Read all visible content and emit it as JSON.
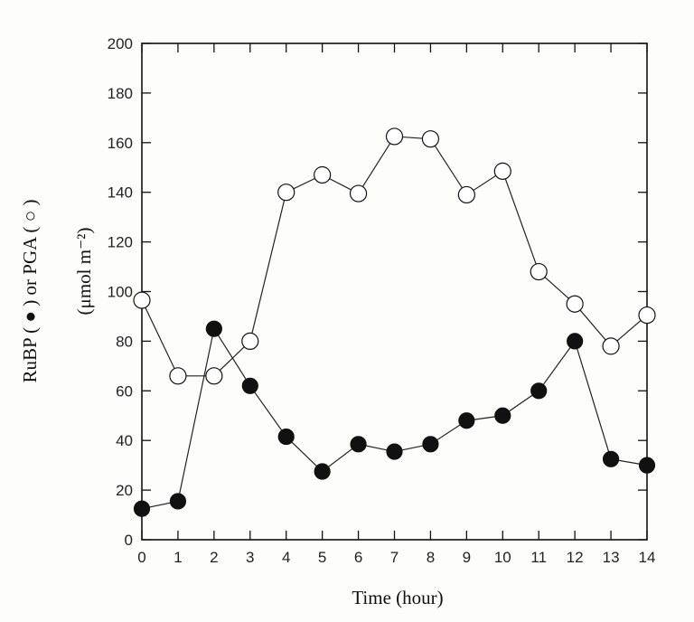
{
  "chart_data": {
    "type": "line",
    "title": "",
    "xlabel": "Time (hour)",
    "ylabel_line1": "RuBP ( ● ) or PGA ( ○ )",
    "ylabel_line2": "(μmol m⁻²)",
    "xlim": [
      0,
      14
    ],
    "ylim": [
      0,
      200
    ],
    "xticks": [
      "0",
      "1",
      "2",
      "3",
      "4",
      "5",
      "6",
      "7",
      "8",
      "9",
      "10",
      "11",
      "12",
      "13",
      "14"
    ],
    "yticks": [
      "0",
      "20",
      "40",
      "60",
      "80",
      "100",
      "120",
      "140",
      "160",
      "180",
      "200"
    ],
    "grid": false,
    "x": [
      0,
      1,
      2,
      3,
      4,
      5,
      6,
      7,
      8,
      9,
      10,
      11,
      12,
      13,
      14
    ],
    "series": [
      {
        "name": "PGA",
        "marker": "open-circle",
        "values": [
          96.5,
          66,
          66,
          80,
          140,
          147,
          139.5,
          162.5,
          161.5,
          139,
          148.5,
          108,
          95,
          78,
          90.5
        ]
      },
      {
        "name": "RuBP",
        "marker": "filled-circle",
        "values": [
          12.5,
          15.5,
          85,
          62,
          41.5,
          27.5,
          38.5,
          35.5,
          38.5,
          48,
          50,
          60,
          80,
          32.5,
          30
        ]
      }
    ]
  }
}
